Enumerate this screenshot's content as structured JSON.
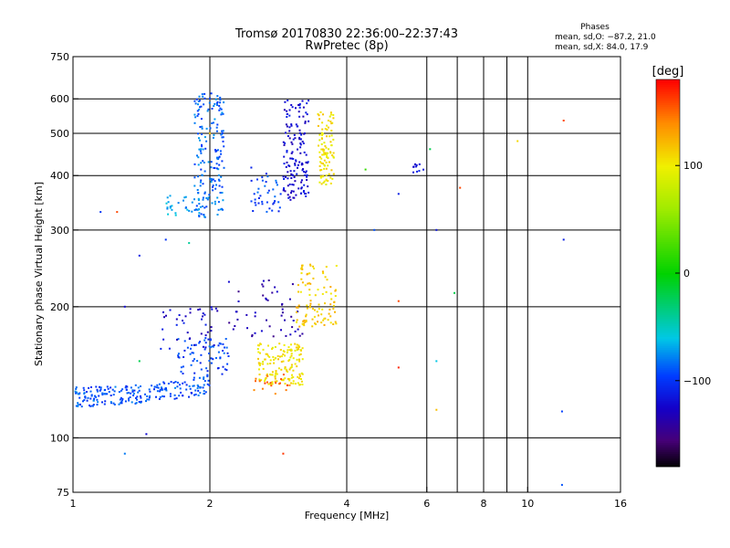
{
  "chart_data": {
    "type": "scatter",
    "title": "Tromsø 20170830 22:36:00–22:37:43",
    "subtitle": "RwPretec (8p)",
    "xlabel": "Frequency [MHz]",
    "ylabel": "Stationary phase Virtual Height [km]",
    "x_scale": "log",
    "y_scale": "log",
    "xlim": [
      1,
      16
    ],
    "ylim": [
      75,
      750
    ],
    "x_ticks": [
      1,
      2,
      4,
      6,
      8,
      10,
      16
    ],
    "x_tick_labels": [
      "1",
      "2",
      "4",
      "6",
      "8",
      "10",
      "16"
    ],
    "x_grid": [
      2,
      4,
      6,
      7,
      8,
      9,
      10
    ],
    "y_ticks": [
      75,
      100,
      200,
      300,
      400,
      500,
      600,
      750
    ],
    "y_tick_labels": [
      "75",
      "100",
      "200",
      "300",
      "400",
      "500",
      "600",
      "750"
    ],
    "y_grid": [
      100,
      200,
      300,
      400,
      500,
      600
    ],
    "grid": true,
    "stats": {
      "heading": "Phases",
      "line1": "mean, sd,O: −87.2, 21.0",
      "line2": "mean, sd,X: 84.0, 17.9"
    },
    "colorbar": {
      "label": "[deg]",
      "min": -180,
      "max": 180,
      "ticks": [
        100,
        0,
        -100
      ],
      "tick_labels": [
        "100",
        "0",
        "−100"
      ],
      "colormap": "rainbow"
    },
    "series": [
      {
        "kind": "cluster",
        "phase": -90,
        "f_range": [
          1.0,
          2.0
        ],
        "h_range": [
          118,
          140
        ],
        "count": 220,
        "shape": "rise"
      },
      {
        "kind": "cluster",
        "phase": -95,
        "f_range": [
          1.7,
          2.2
        ],
        "h_range": [
          140,
          170
        ],
        "count": 70
      },
      {
        "kind": "cluster",
        "phase": -120,
        "f_range": [
          1.55,
          2.1
        ],
        "h_range": [
          160,
          200
        ],
        "count": 40
      },
      {
        "kind": "cluster",
        "phase": -135,
        "f_range": [
          2.2,
          3.2
        ],
        "h_range": [
          170,
          230
        ],
        "count": 50
      },
      {
        "kind": "cluster",
        "phase": 105,
        "f_range": [
          2.55,
          3.2
        ],
        "h_range": [
          132,
          165
        ],
        "count": 150
      },
      {
        "kind": "cluster",
        "phase": 115,
        "f_range": [
          3.1,
          3.8
        ],
        "h_range": [
          180,
          250
        ],
        "count": 100
      },
      {
        "kind": "cluster",
        "phase": 150,
        "f_range": [
          2.5,
          3.0
        ],
        "h_range": [
          125,
          140
        ],
        "count": 20
      },
      {
        "kind": "cluster",
        "phase": -85,
        "f_range": [
          1.85,
          2.15
        ],
        "h_range": [
          320,
          620
        ],
        "count": 180
      },
      {
        "kind": "cluster",
        "phase": -70,
        "f_range": [
          1.6,
          1.9
        ],
        "h_range": [
          320,
          360
        ],
        "count": 30
      },
      {
        "kind": "cluster",
        "phase": -120,
        "f_range": [
          2.9,
          3.3
        ],
        "h_range": [
          350,
          600
        ],
        "count": 150
      },
      {
        "kind": "cluster",
        "phase": -95,
        "f_range": [
          2.45,
          2.9
        ],
        "h_range": [
          330,
          420
        ],
        "count": 40
      },
      {
        "kind": "cluster",
        "phase": 105,
        "f_range": [
          3.45,
          3.75
        ],
        "h_range": [
          380,
          560
        ],
        "count": 100
      },
      {
        "kind": "cluster",
        "phase": -115,
        "f_range": [
          5.6,
          5.9
        ],
        "h_range": [
          405,
          425
        ],
        "count": 10
      }
    ],
    "outliers": [
      [
        1.3,
        92,
        -80
      ],
      [
        1.45,
        102,
        -120
      ],
      [
        2.9,
        92,
        165
      ],
      [
        11.9,
        78,
        -90
      ],
      [
        11.9,
        115,
        -95
      ],
      [
        12.0,
        285,
        -110
      ],
      [
        6.3,
        300,
        -115
      ],
      [
        4.6,
        300,
        -90
      ],
      [
        12.0,
        535,
        160
      ],
      [
        9.5,
        480,
        110
      ],
      [
        7.1,
        375,
        160
      ],
      [
        6.1,
        460,
        -20
      ],
      [
        4.4,
        413,
        20
      ],
      [
        5.2,
        363,
        -110
      ],
      [
        6.9,
        215,
        -20
      ],
      [
        5.2,
        206,
        160
      ],
      [
        6.3,
        116,
        120
      ],
      [
        5.2,
        145,
        170
      ],
      [
        6.3,
        150,
        -60
      ],
      [
        1.4,
        262,
        -110
      ],
      [
        1.15,
        330,
        -100
      ],
      [
        1.25,
        330,
        160
      ],
      [
        1.8,
        280,
        -40
      ],
      [
        2.0,
        500,
        120
      ],
      [
        1.6,
        285,
        -100
      ],
      [
        1.3,
        200,
        -120
      ],
      [
        1.4,
        150,
        -20
      ]
    ]
  }
}
